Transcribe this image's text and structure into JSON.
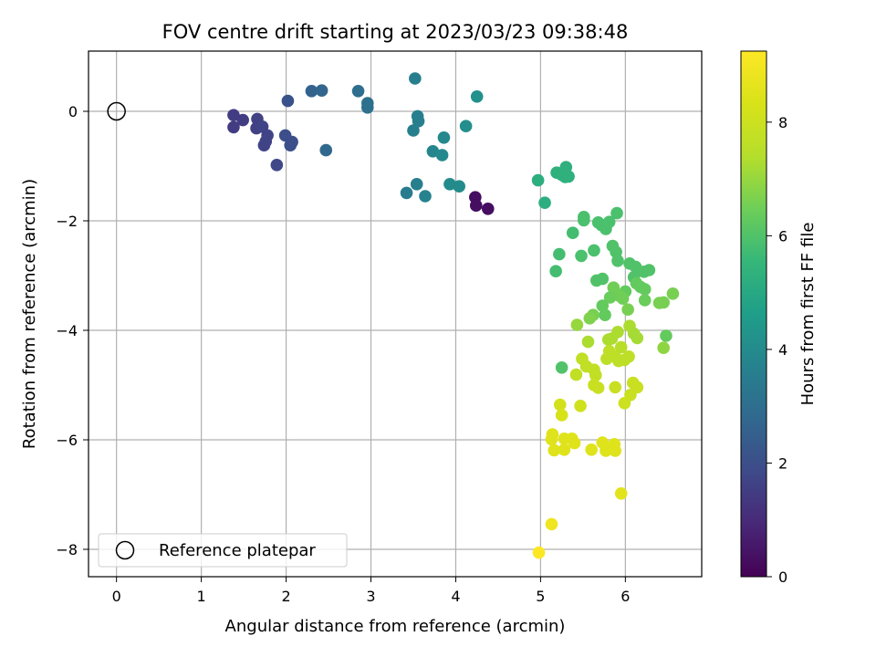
{
  "chart_data": {
    "type": "scatter",
    "title": "FOV centre drift starting at 2023/03/23 09:38:48",
    "xlabel": "Angular distance from reference (arcmin)",
    "ylabel": "Rotation from reference (arcmin)",
    "xlim": [
      -0.33,
      6.9
    ],
    "ylim": [
      -8.5,
      1.1
    ],
    "xticks": [
      0,
      1,
      2,
      3,
      4,
      5,
      6
    ],
    "yticks": [
      0,
      -2,
      -4,
      -6,
      -8
    ],
    "grid": true,
    "legend": {
      "location": "lower-left",
      "entries": [
        "Reference platepar"
      ]
    },
    "reference_point": {
      "x": 0,
      "y": 0,
      "marker": "open-circle",
      "label": "Reference platepar"
    },
    "colorbar": {
      "label": "Hours from first FF file",
      "colormap": "viridis",
      "min": 0,
      "max": 9.25,
      "ticks": [
        0,
        2,
        4,
        6,
        8
      ]
    },
    "points": [
      [
        4.23,
        -1.57,
        0.3
      ],
      [
        4.38,
        -1.78,
        0.3
      ],
      [
        4.24,
        -1.72,
        0.3
      ],
      [
        1.38,
        -0.07,
        1.5
      ],
      [
        1.49,
        -0.16,
        1.5
      ],
      [
        1.38,
        -0.29,
        1.5
      ],
      [
        1.66,
        -0.14,
        1.6
      ],
      [
        1.65,
        -0.31,
        1.6
      ],
      [
        1.78,
        -0.44,
        1.7
      ],
      [
        1.72,
        -0.28,
        1.7
      ],
      [
        1.74,
        -0.62,
        1.7
      ],
      [
        1.76,
        -0.55,
        1.7
      ],
      [
        1.89,
        -0.98,
        1.8
      ],
      [
        1.99,
        -0.44,
        2.0
      ],
      [
        2.05,
        -0.62,
        2.0
      ],
      [
        2.07,
        -0.56,
        2.0
      ],
      [
        2.02,
        0.19,
        2.1
      ],
      [
        2.3,
        0.37,
        2.6
      ],
      [
        2.42,
        0.38,
        2.7
      ],
      [
        2.47,
        -0.71,
        2.8
      ],
      [
        2.85,
        0.37,
        3.0
      ],
      [
        2.96,
        0.15,
        3.1
      ],
      [
        2.96,
        0.07,
        3.1
      ],
      [
        3.42,
        -1.49,
        3.5
      ],
      [
        3.52,
        0.6,
        3.6
      ],
      [
        3.5,
        -0.35,
        3.6
      ],
      [
        3.55,
        -0.09,
        3.6
      ],
      [
        3.56,
        -0.18,
        3.6
      ],
      [
        3.54,
        -1.33,
        3.6
      ],
      [
        3.64,
        -1.55,
        3.7
      ],
      [
        3.73,
        -0.73,
        3.8
      ],
      [
        3.84,
        -0.8,
        3.9
      ],
      [
        3.86,
        -0.48,
        3.9
      ],
      [
        3.93,
        -1.33,
        4.0
      ],
      [
        4.04,
        -1.37,
        4.0
      ],
      [
        4.12,
        -0.27,
        4.1
      ],
      [
        4.25,
        0.27,
        4.2
      ],
      [
        4.97,
        -1.26,
        5.2
      ],
      [
        5.05,
        -1.67,
        5.2
      ],
      [
        5.19,
        -1.12,
        5.3
      ],
      [
        5.25,
        -1.16,
        5.3
      ],
      [
        5.3,
        -1.02,
        5.3
      ],
      [
        5.29,
        -1.2,
        5.3
      ],
      [
        5.33,
        -1.19,
        5.3
      ],
      [
        5.18,
        -2.92,
        5.8
      ],
      [
        5.22,
        -2.61,
        5.8
      ],
      [
        5.38,
        -2.22,
        5.8
      ],
      [
        5.48,
        -2.64,
        5.9
      ],
      [
        5.51,
        -1.93,
        5.9
      ],
      [
        5.51,
        -1.99,
        5.9
      ],
      [
        5.63,
        -2.54,
        5.9
      ],
      [
        5.68,
        -2.03,
        5.9
      ],
      [
        5.72,
        -2.08,
        5.9
      ],
      [
        5.77,
        -2.15,
        5.9
      ],
      [
        5.81,
        -2.02,
        5.9
      ],
      [
        5.9,
        -1.86,
        5.9
      ],
      [
        5.85,
        -2.46,
        6.0
      ],
      [
        5.89,
        -2.57,
        6.0
      ],
      [
        5.91,
        -2.73,
        6.0
      ],
      [
        5.66,
        -3.09,
        6.0
      ],
      [
        5.73,
        -3.06,
        6.0
      ],
      [
        6.05,
        -2.78,
        6.0
      ],
      [
        6.12,
        -2.84,
        6.0
      ],
      [
        6.1,
        -3.03,
        6.0
      ],
      [
        6.22,
        -2.93,
        6.0
      ],
      [
        6.28,
        -2.9,
        6.0
      ],
      [
        5.25,
        -4.68,
        6.0
      ],
      [
        6.13,
        -3.14,
        6.3
      ],
      [
        6.18,
        -3.21,
        6.3
      ],
      [
        6.23,
        -3.25,
        6.3
      ],
      [
        6.23,
        -3.45,
        6.4
      ],
      [
        6.0,
        -3.29,
        6.3
      ],
      [
        5.86,
        -3.22,
        6.5
      ],
      [
        5.93,
        -3.37,
        6.5
      ],
      [
        5.97,
        -3.42,
        6.5
      ],
      [
        5.82,
        -3.4,
        6.4
      ],
      [
        5.73,
        -3.55,
        6.3
      ],
      [
        5.76,
        -3.72,
        6.3
      ],
      [
        5.62,
        -3.72,
        6.6
      ],
      [
        5.58,
        -3.78,
        6.7
      ],
      [
        6.03,
        -3.62,
        6.6
      ],
      [
        6.45,
        -3.49,
        6.6
      ],
      [
        6.56,
        -3.33,
        6.6
      ],
      [
        6.4,
        -3.5,
        6.6
      ],
      [
        6.48,
        -4.1,
        6.3
      ],
      [
        6.45,
        -4.32,
        6.9
      ],
      [
        5.43,
        -3.9,
        7.0
      ],
      [
        5.56,
        -4.21,
        7.3
      ],
      [
        5.8,
        -4.17,
        7.3
      ],
      [
        5.84,
        -4.15,
        7.3
      ],
      [
        5.91,
        -4.03,
        7.3
      ],
      [
        6.05,
        -3.92,
        7.3
      ],
      [
        6.1,
        -4.06,
        7.2
      ],
      [
        6.14,
        -4.14,
        7.2
      ],
      [
        5.95,
        -4.31,
        7.5
      ],
      [
        5.81,
        -4.38,
        7.6
      ],
      [
        5.88,
        -4.48,
        7.6
      ],
      [
        5.92,
        -4.56,
        7.6
      ],
      [
        5.99,
        -4.54,
        7.6
      ],
      [
        6.04,
        -4.48,
        7.6
      ],
      [
        5.78,
        -4.52,
        7.6
      ],
      [
        5.49,
        -4.52,
        7.7
      ],
      [
        5.54,
        -4.66,
        7.7
      ],
      [
        5.63,
        -4.72,
        7.7
      ],
      [
        5.65,
        -4.82,
        7.7
      ],
      [
        5.42,
        -4.81,
        7.7
      ],
      [
        5.63,
        -5.0,
        7.9
      ],
      [
        5.68,
        -5.05,
        7.9
      ],
      [
        5.88,
        -5.04,
        7.9
      ],
      [
        6.09,
        -4.96,
        7.9
      ],
      [
        6.14,
        -5.04,
        7.9
      ],
      [
        6.06,
        -5.18,
        7.9
      ],
      [
        5.99,
        -5.33,
        8.0
      ],
      [
        5.47,
        -5.38,
        8.1
      ],
      [
        5.23,
        -5.36,
        8.2
      ],
      [
        5.25,
        -5.55,
        8.3
      ],
      [
        5.14,
        -5.9,
        8.5
      ],
      [
        5.13,
        -5.99,
        8.5
      ],
      [
        5.28,
        -5.98,
        8.5
      ],
      [
        5.37,
        -5.98,
        8.5
      ],
      [
        5.4,
        -6.06,
        8.5
      ],
      [
        5.16,
        -6.19,
        8.5
      ],
      [
        5.28,
        -6.18,
        8.5
      ],
      [
        5.6,
        -6.18,
        8.5
      ],
      [
        5.73,
        -6.05,
        8.5
      ],
      [
        5.77,
        -6.2,
        8.5
      ],
      [
        5.87,
        -6.08,
        8.5
      ],
      [
        5.86,
        -6.15,
        8.5
      ],
      [
        5.88,
        -6.2,
        8.5
      ],
      [
        5.95,
        -6.98,
        8.6
      ],
      [
        5.13,
        -7.54,
        8.9
      ],
      [
        4.98,
        -8.06,
        9.2
      ]
    ]
  }
}
